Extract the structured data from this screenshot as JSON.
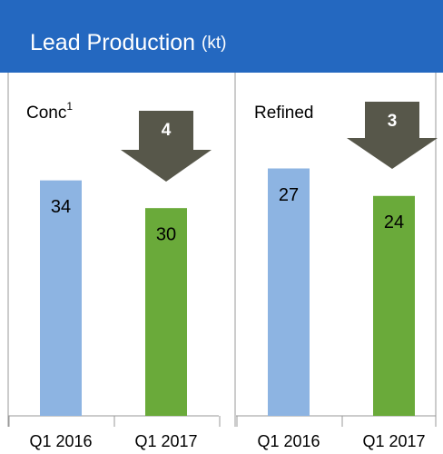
{
  "header": {
    "title": "Lead Production",
    "unit": "(kt)"
  },
  "chart_data": [
    {
      "type": "bar",
      "title": "Conc",
      "title_note": "1",
      "categories": [
        "Q1 2016",
        "Q1 2017"
      ],
      "values": [
        34,
        30
      ],
      "colors": [
        "#8db4e2",
        "#6aaa3a"
      ],
      "ylim": [
        0,
        43
      ],
      "annotation": "4"
    },
    {
      "type": "bar",
      "title": "Refined",
      "categories": [
        "Q1 2016",
        "Q1 2017"
      ],
      "values": [
        27,
        24
      ],
      "colors": [
        "#8db4e2",
        "#6aaa3a"
      ],
      "ylim": [
        0,
        32.5
      ],
      "annotation": "3"
    }
  ]
}
